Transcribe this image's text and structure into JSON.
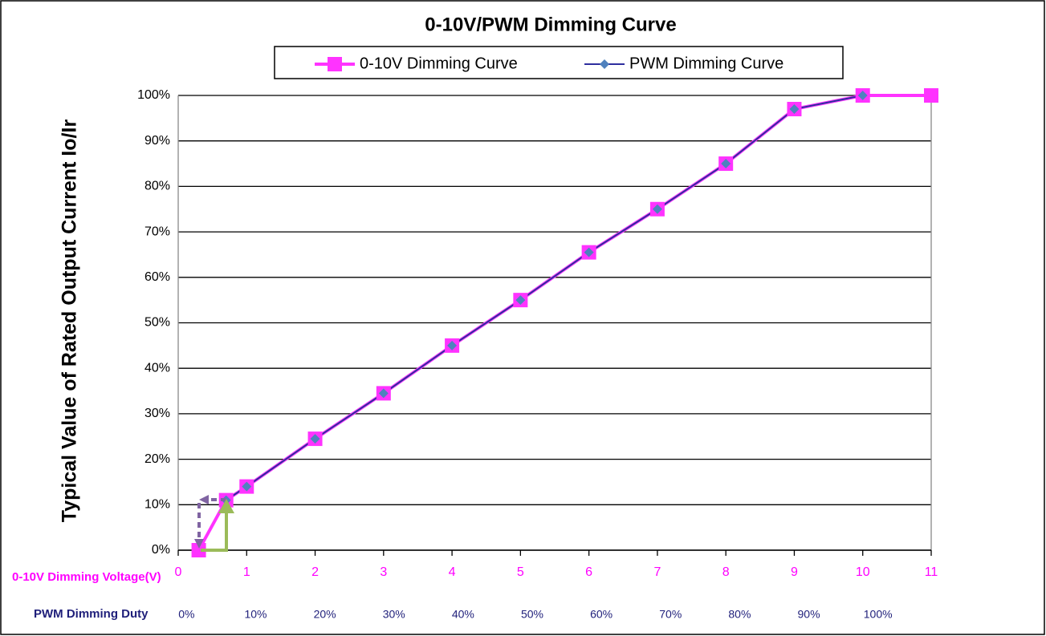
{
  "chart_data": {
    "type": "line",
    "title": "0-10V/PWM Dimming Curve",
    "ylabel": "Typical Value of Rated Output Current Io/Ir",
    "xlabel": "0-10V Dimming Voltage(V)",
    "x2label": "PWM Dimming Duty",
    "xlim": [
      0,
      11
    ],
    "xticks": [
      0,
      1,
      2,
      3,
      4,
      5,
      6,
      7,
      8,
      9,
      10,
      11
    ],
    "ylim": [
      0,
      100
    ],
    "yticks": [
      {
        "value": 0,
        "label": "0%"
      },
      {
        "value": 10,
        "label": "10%"
      },
      {
        "value": 20,
        "label": "20%"
      },
      {
        "value": 30,
        "label": "30%"
      },
      {
        "value": 40,
        "label": "40%"
      },
      {
        "value": 50,
        "label": "50%"
      },
      {
        "value": 60,
        "label": "60%"
      },
      {
        "value": 70,
        "label": "70%"
      },
      {
        "value": 80,
        "label": "80%"
      },
      {
        "value": 90,
        "label": "90%"
      },
      {
        "value": 100,
        "label": "100%"
      }
    ],
    "x2lim": [
      -1.2,
      107.7
    ],
    "x2ticks": [
      {
        "value": 0,
        "label": "0%"
      },
      {
        "value": 10,
        "label": "10%"
      },
      {
        "value": 20,
        "label": "20%"
      },
      {
        "value": 30,
        "label": "30%"
      },
      {
        "value": 40,
        "label": "40%"
      },
      {
        "value": 50,
        "label": "50%"
      },
      {
        "value": 60,
        "label": "60%"
      },
      {
        "value": 70,
        "label": "70%"
      },
      {
        "value": 80,
        "label": "80%"
      },
      {
        "value": 90,
        "label": "90%"
      },
      {
        "value": 100,
        "label": "100%"
      }
    ],
    "grid": true,
    "legend": "top",
    "series": [
      {
        "name": "0-10V Dimming Curve",
        "color": "#ff33ff",
        "marker": "square",
        "x": [
          0.3,
          0.7,
          1,
          2,
          3,
          4,
          5,
          6,
          7,
          8,
          9,
          10,
          11
        ],
        "values": [
          0,
          11,
          14,
          24.5,
          34.5,
          45,
          55,
          65.5,
          75,
          85,
          97,
          100,
          100
        ]
      },
      {
        "name": "PWM Dimming Curve",
        "color": "#2e2e9e",
        "marker": "diamond",
        "marker_color": "#4f81bd",
        "x": [
          0.7,
          1,
          2,
          3,
          4,
          5,
          6,
          7,
          8,
          9,
          10
        ],
        "values": [
          11,
          14,
          24.5,
          34.5,
          45,
          55,
          65.5,
          75,
          85,
          97,
          100
        ]
      }
    ]
  }
}
